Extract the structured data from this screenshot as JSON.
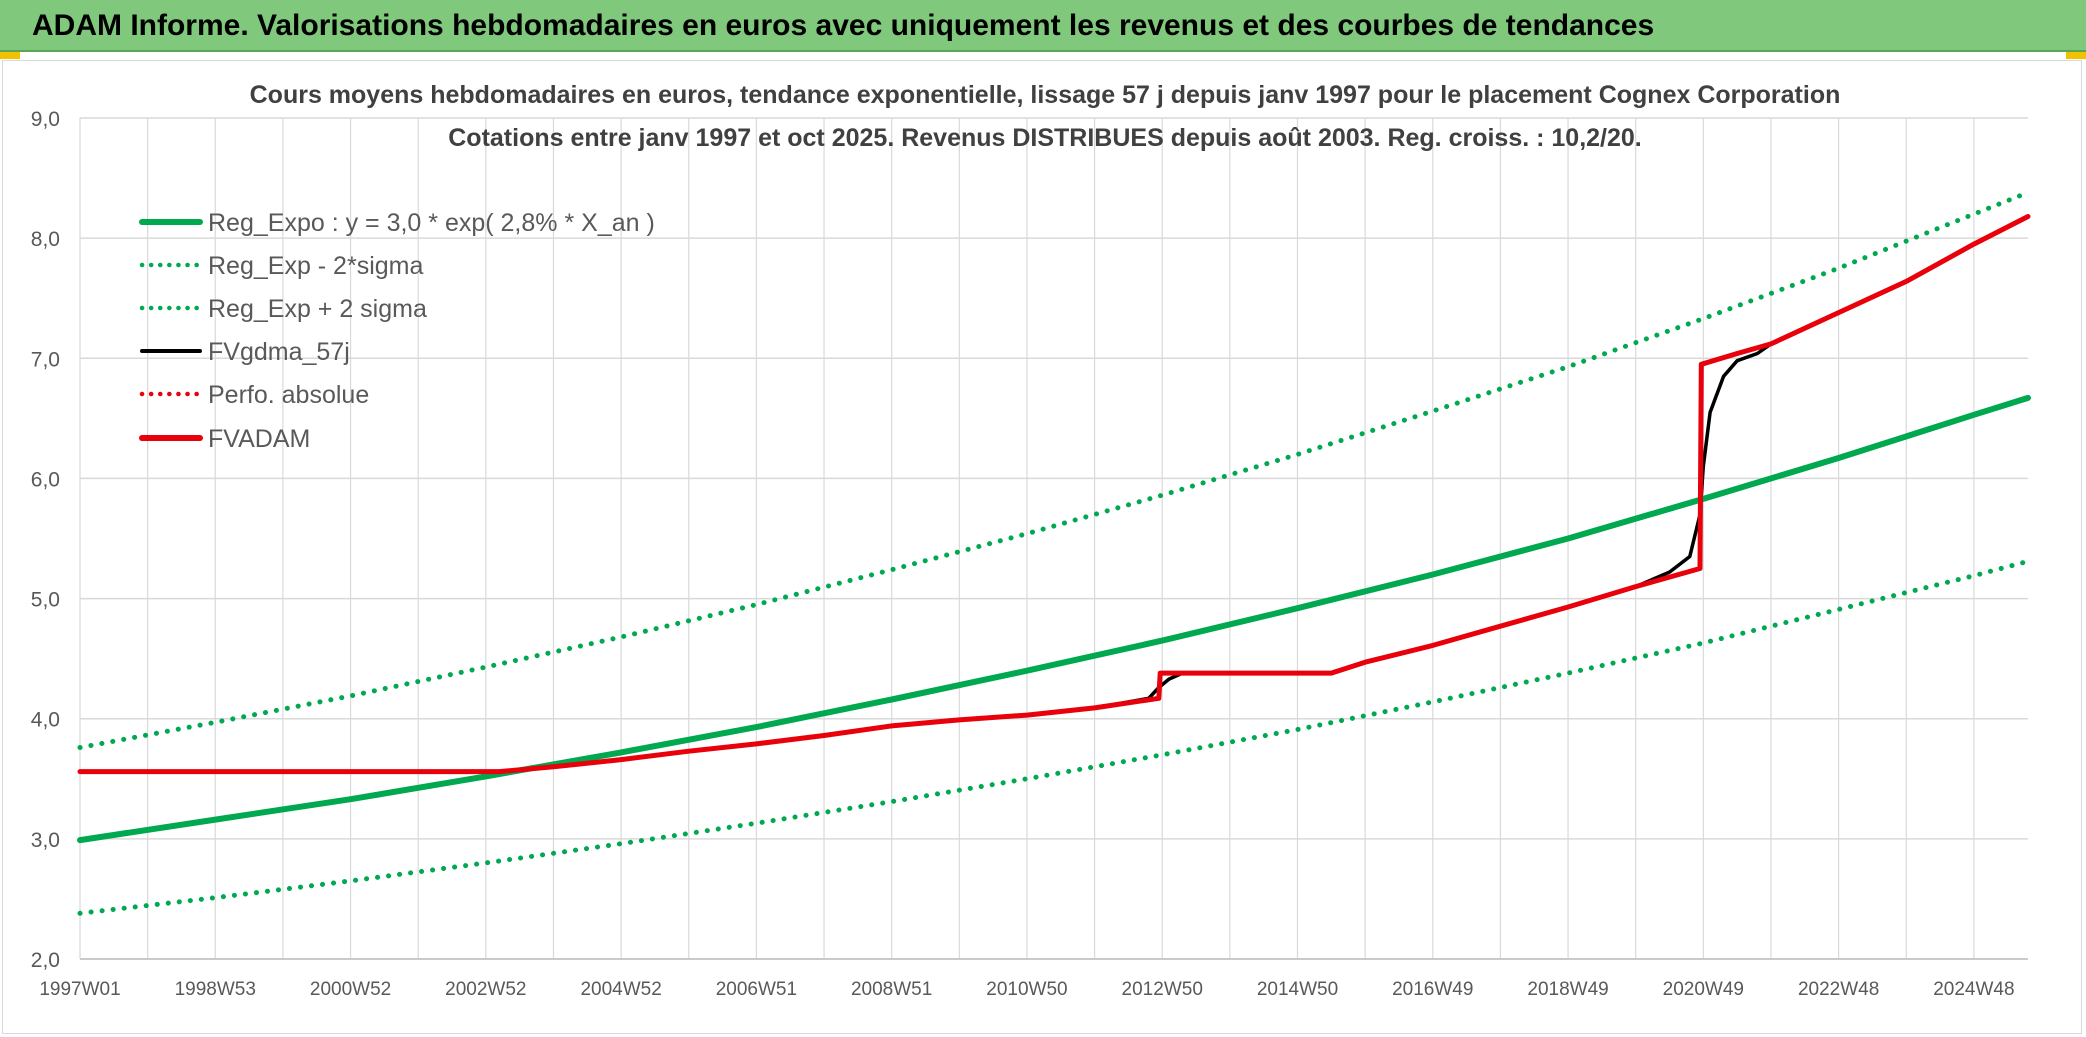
{
  "banner": {
    "title": "ADAM Informe. Valorisations hebdomadaires en euros avec uniquement les revenus et des courbes de tendances"
  },
  "colors": {
    "banner_bg": "#80c87c",
    "trend_green": "#00a84f",
    "series_black": "#000000",
    "series_red": "#e8000b",
    "grid": "#d9d9d9",
    "axis_text": "#595959",
    "title_text": "#404040"
  },
  "chart_data": {
    "type": "line",
    "title": "Cours moyens hebdomadaires en euros, tendance exponentielle, lissage 57 j depuis janv 1997 pour le placement Cognex Corporation",
    "subtitle": "Cotations entre janv 1997 et oct 2025. Revenus DISTRIBUES depuis août 2003. Reg. croiss. : 10,2/20.",
    "xlabel": "",
    "ylabel": "",
    "x_unit": "year",
    "xlim": [
      1997.0,
      2025.8
    ],
    "ylim": [
      2.0,
      9.0
    ],
    "y_ticks": [
      "9,0",
      "8,0",
      "7,0",
      "6,0",
      "5,0",
      "4,0",
      "3,0",
      "2,0"
    ],
    "y_tick_values": [
      9,
      8,
      7,
      6,
      5,
      4,
      3,
      2
    ],
    "x_ticks": [
      "1997W01",
      "1998W53",
      "2000W52",
      "2002W52",
      "2004W52",
      "2006W51",
      "2008W51",
      "2010W50",
      "2012W50",
      "2014W50",
      "2016W49",
      "2018W49",
      "2020W49",
      "2022W48",
      "2024W48"
    ],
    "x_tick_values": [
      1997.0,
      1999.0,
      2001.0,
      2003.0,
      2005.0,
      2007.0,
      2009.0,
      2011.0,
      2013.0,
      2015.0,
      2017.0,
      2019.0,
      2021.0,
      2023.0,
      2025.0
    ],
    "grid": true,
    "legend_position": "top-left",
    "series": [
      {
        "name": "Reg_Expo : y = 3,0 * exp( 2,8% *  X_an )",
        "color": "#00a84f",
        "style": "solid",
        "x": [
          1997,
          1999,
          2001,
          2003,
          2005,
          2007,
          2009,
          2011,
          2013,
          2015,
          2017,
          2019,
          2021,
          2023,
          2025,
          2025.8
        ],
        "y": [
          2.99,
          3.16,
          3.33,
          3.52,
          3.72,
          3.93,
          4.16,
          4.4,
          4.65,
          4.92,
          5.2,
          5.5,
          5.83,
          6.17,
          6.53,
          6.67
        ]
      },
      {
        "name": "Reg_Exp - 2*sigma",
        "color": "#00a84f",
        "style": "dotted",
        "x": [
          1997,
          1999,
          2001,
          2003,
          2005,
          2007,
          2009,
          2011,
          2013,
          2015,
          2017,
          2019,
          2021,
          2023,
          2025,
          2025.8
        ],
        "y": [
          2.38,
          2.51,
          2.65,
          2.8,
          2.96,
          3.13,
          3.31,
          3.5,
          3.7,
          3.91,
          4.14,
          4.38,
          4.63,
          4.91,
          5.19,
          5.31
        ]
      },
      {
        "name": "Reg_Exp + 2 sigma",
        "color": "#00a84f",
        "style": "dotted",
        "x": [
          1997,
          1999,
          2001,
          2003,
          2005,
          2007,
          2009,
          2011,
          2013,
          2015,
          2017,
          2019,
          2021,
          2023,
          2025,
          2025.8
        ],
        "y": [
          3.76,
          3.97,
          4.19,
          4.43,
          4.68,
          4.95,
          5.24,
          5.54,
          5.86,
          6.2,
          6.56,
          6.93,
          7.33,
          7.75,
          8.2,
          8.38
        ]
      },
      {
        "name": "FVgdma_57j",
        "color": "#000000",
        "style": "solid",
        "x": [
          1997,
          2003.2,
          2004,
          2005,
          2006,
          2007,
          2008,
          2009,
          2010,
          2011,
          2012,
          2012.8,
          2012.95,
          2013.1,
          2013.3,
          2015.5,
          2016,
          2017,
          2018,
          2019,
          2020,
          2020.5,
          2020.8,
          2020.95,
          2021.0,
          2021.1,
          2021.3,
          2021.5,
          2021.8,
          2022,
          2023,
          2024,
          2025,
          2025.8
        ],
        "y": [
          3.56,
          3.56,
          3.6,
          3.66,
          3.73,
          3.79,
          3.86,
          3.94,
          3.99,
          4.03,
          4.09,
          4.17,
          4.26,
          4.33,
          4.38,
          4.38,
          4.47,
          4.61,
          4.77,
          4.93,
          5.1,
          5.22,
          5.35,
          5.7,
          6.1,
          6.55,
          6.85,
          6.98,
          7.04,
          7.12,
          7.38,
          7.64,
          7.95,
          8.18
        ]
      },
      {
        "name": "Perfo. absolue",
        "color": "#e8000b",
        "style": "dotted",
        "x": [],
        "y": []
      },
      {
        "name": "FVADAM",
        "color": "#e8000b",
        "style": "solid",
        "x": [
          1997,
          2003.2,
          2004,
          2005,
          2006,
          2007,
          2008,
          2009,
          2010,
          2011,
          2012,
          2012.95,
          2012.97,
          2015.5,
          2016,
          2017,
          2018,
          2019,
          2020,
          2020.95,
          2020.97,
          2021.5,
          2022,
          2023,
          2024,
          2025,
          2025.8
        ],
        "y": [
          3.56,
          3.56,
          3.6,
          3.66,
          3.73,
          3.79,
          3.86,
          3.94,
          3.99,
          4.03,
          4.09,
          4.17,
          4.38,
          4.38,
          4.47,
          4.61,
          4.77,
          4.93,
          5.1,
          5.25,
          6.95,
          7.04,
          7.12,
          7.38,
          7.64,
          7.95,
          8.18
        ]
      }
    ]
  }
}
